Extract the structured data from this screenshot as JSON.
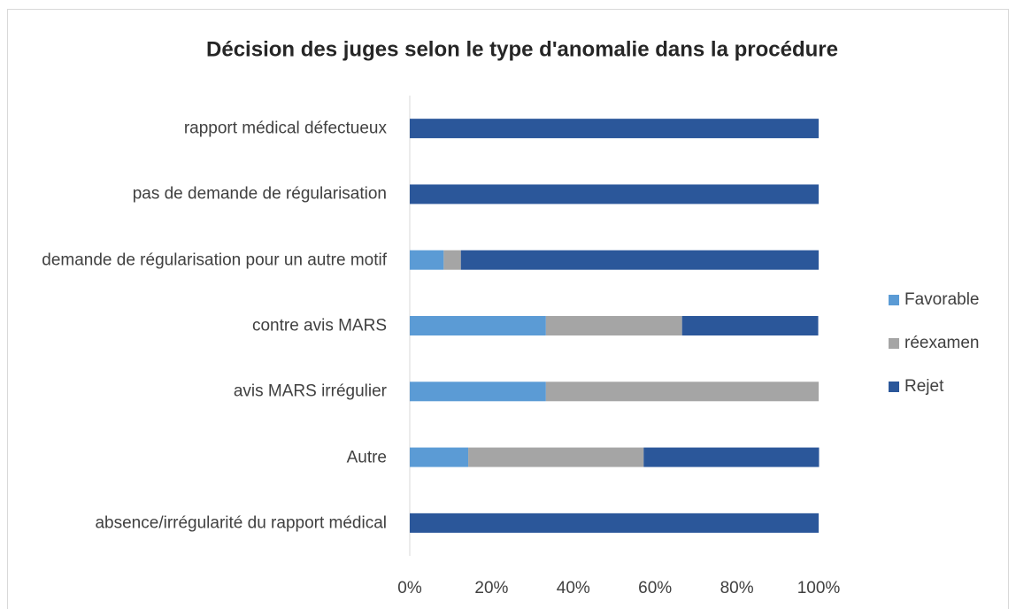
{
  "chart_data": {
    "type": "stacked-bar-horizontal",
    "title": "Décision des juges selon le type d'anomalie dans la procédure",
    "categories": [
      "rapport médical défectueux",
      "pas de demande de régularisation",
      "demande de régularisation pour un autre motif",
      "contre avis MARS",
      "avis MARS irrégulier",
      "Autre",
      "absence/irrégularité du rapport médical"
    ],
    "series": [
      {
        "name": "Favorable",
        "color": "#5b9bd5",
        "values": [
          0,
          0,
          8.3,
          33.3,
          33.3,
          14.3,
          0
        ]
      },
      {
        "name": "réexamen",
        "color": "#a5a5a5",
        "values": [
          0,
          0,
          4.2,
          33.3,
          66.7,
          42.9,
          0
        ]
      },
      {
        "name": "Rejet",
        "color": "#2b579a",
        "values": [
          100,
          100,
          87.5,
          33.3,
          0,
          42.9,
          100
        ]
      }
    ],
    "xlim": [
      0,
      100
    ],
    "xticks": [
      {
        "value": 0,
        "label": "0%"
      },
      {
        "value": 20,
        "label": "20%"
      },
      {
        "value": 40,
        "label": "40%"
      },
      {
        "value": 60,
        "label": "60%"
      },
      {
        "value": 80,
        "label": "80%"
      },
      {
        "value": 100,
        "label": "100%"
      }
    ],
    "grid": false,
    "legend": "right"
  }
}
